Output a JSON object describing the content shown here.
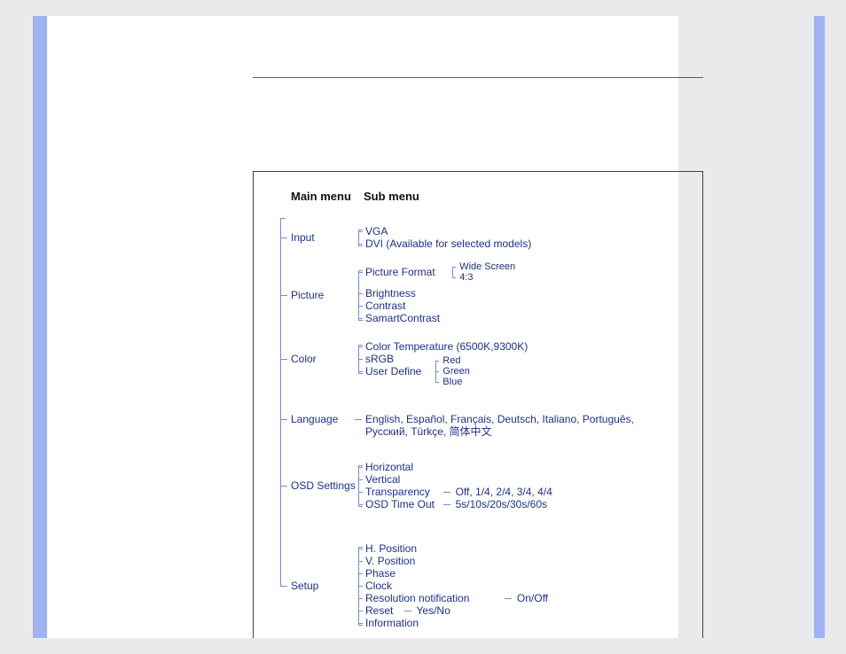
{
  "colors": {
    "page_bg": "#e9eaeb",
    "paper_bg": "#ffffff",
    "stripe": "#9fb2f3",
    "rule": "#5a5a5a",
    "box_border": "#404040",
    "bracket": "#7e8acb",
    "text_heading": "#111111",
    "text_item": "#1e2f8b"
  },
  "fonts": {
    "family": "Arial",
    "heading_pt": 13,
    "item_pt": 12
  },
  "headings": {
    "main": "Main menu",
    "sub": "Sub menu"
  },
  "menu": [
    {
      "label": "Input",
      "children": [
        {
          "label": "VGA"
        },
        {
          "label": "DVI (Available for selected models)"
        }
      ]
    },
    {
      "label": "Picture",
      "children": [
        {
          "label": "Picture Format",
          "children": [
            {
              "label": "Wide Screen"
            },
            {
              "label": "4:3"
            }
          ]
        },
        {
          "label": "Brightness"
        },
        {
          "label": "Contrast"
        },
        {
          "label": "SamartContrast"
        }
      ]
    },
    {
      "label": "Color",
      "children": [
        {
          "label": "Color Temperature (6500K,9300K)"
        },
        {
          "label": "sRGB"
        },
        {
          "label": "User Define",
          "children": [
            {
              "label": "Red"
            },
            {
              "label": "Green"
            },
            {
              "label": "Blue"
            }
          ]
        }
      ]
    },
    {
      "label": "Language",
      "children": [
        {
          "label": "English, Español, Français, Deutsch, Italiano, Português, Русский, Türkçe, 简体中文"
        }
      ]
    },
    {
      "label": "OSD Settings",
      "children": [
        {
          "label": "Horizontal"
        },
        {
          "label": "Vertical"
        },
        {
          "label": "Transparency",
          "tail": "Off, 1/4, 2/4, 3/4, 4/4"
        },
        {
          "label": "OSD Time Out",
          "tail": "5s/10s/20s/30s/60s"
        }
      ]
    },
    {
      "label": "Setup",
      "children": [
        {
          "label": "H. Position"
        },
        {
          "label": "V. Position"
        },
        {
          "label": "Phase"
        },
        {
          "label": "Clock"
        },
        {
          "label": "Resolution notification",
          "tail": "On/Off"
        },
        {
          "label": "Reset",
          "tail": "Yes/No"
        },
        {
          "label": "Information"
        }
      ]
    }
  ]
}
